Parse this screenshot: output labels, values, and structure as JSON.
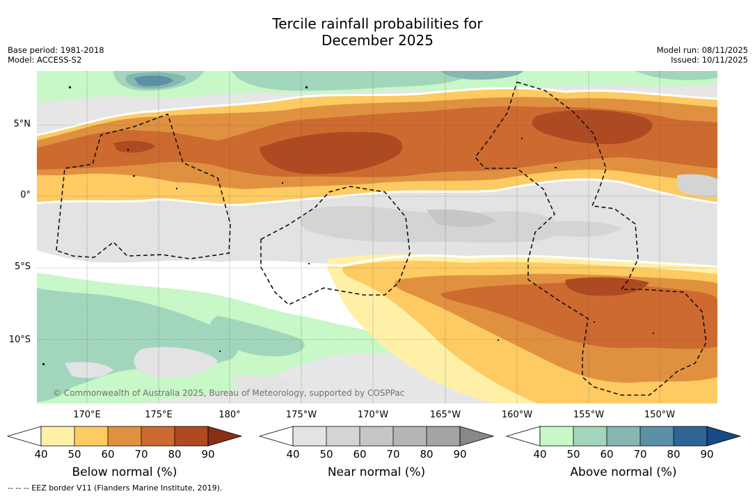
{
  "title_line1": "Tercile rainfall probabilities for",
  "title_line2": "December 2025",
  "base_period": "Base period: 1981-2018",
  "model": "Model: ACCESS-S2",
  "model_run": "Model run: 08/11/2025",
  "issued": "Issued: 10/11/2025",
  "lat_labels": [
    "5°N",
    "0°",
    "5°S",
    "10°S"
  ],
  "lon_labels": [
    "170°E",
    "175°E",
    "180°",
    "175°W",
    "170°W",
    "165°W",
    "160°W",
    "155°W",
    "150°W"
  ],
  "copyright": "© Commonwealth of Australia 2025, Bureau of Meteorology, supported by COSPPac",
  "colorbars": [
    {
      "label": "Below normal (%)",
      "ticks": [
        "40",
        "50",
        "60",
        "70",
        "80",
        "90"
      ],
      "colors": [
        "#fff0a8",
        "#fdcb62",
        "#e09140",
        "#cc6a30",
        "#ad4a22",
        "#8a2e14"
      ]
    },
    {
      "label": "Near normal (%)",
      "ticks": [
        "40",
        "50",
        "60",
        "70",
        "80",
        "90"
      ],
      "colors": [
        "#e3e3e3",
        "#d4d4d4",
        "#c6c6c6",
        "#b6b6b6",
        "#a4a4a4",
        "#888888"
      ]
    },
    {
      "label": "Above normal (%)",
      "ticks": [
        "40",
        "50",
        "60",
        "70",
        "80",
        "90"
      ],
      "colors": [
        "#c8f7c8",
        "#a2d6bc",
        "#86b7b0",
        "#5b91a6",
        "#2f6496",
        "#174a86"
      ]
    }
  ],
  "footer": "--  --  -- EEZ border V11 (Flanders Marine Institute, 2019)."
}
